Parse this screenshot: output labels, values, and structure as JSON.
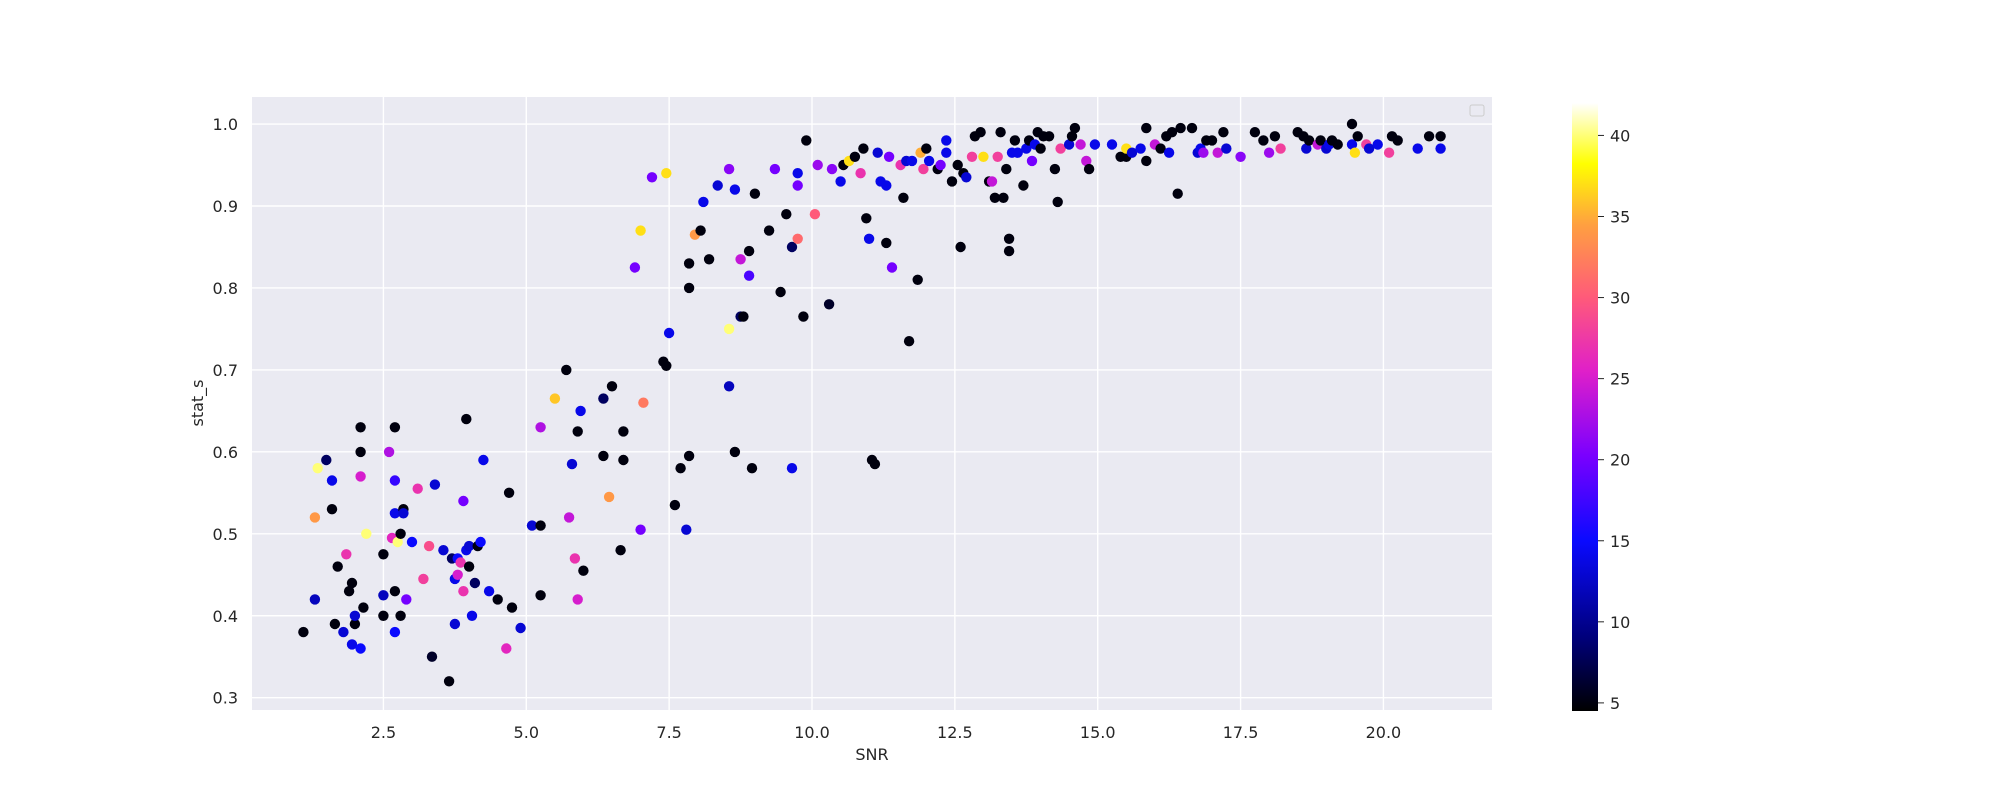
{
  "chart_data": {
    "type": "scatter",
    "title": "",
    "xlabel": "SNR",
    "ylabel": "stat_s",
    "xlim": [
      0.2,
      21.9
    ],
    "ylim": [
      0.285,
      1.033
    ],
    "xticks": [
      "2.5",
      "5.0",
      "7.5",
      "10.0",
      "12.5",
      "15.0",
      "17.5",
      "20.0"
    ],
    "yticks": [
      "0.3",
      "0.4",
      "0.5",
      "0.6",
      "0.7",
      "0.8",
      "0.9",
      "1.0"
    ],
    "grid": true,
    "legend": "top-right, empty",
    "colorbar": {
      "range": [
        4.5,
        42
      ],
      "ticks": [
        "5",
        "10",
        "15",
        "20",
        "25",
        "30",
        "35",
        "40"
      ],
      "colormap": "gnuplot2"
    },
    "colors": {
      "plot_background": "#eaeaf2",
      "grid": "#ffffff",
      "text": "#262626"
    },
    "points": [
      [
        1.1,
        0.38,
        5
      ],
      [
        1.3,
        0.42,
        12
      ],
      [
        1.3,
        0.52,
        34
      ],
      [
        1.35,
        0.58,
        40
      ],
      [
        1.5,
        0.59,
        8
      ],
      [
        1.6,
        0.53,
        5
      ],
      [
        1.6,
        0.565,
        14
      ],
      [
        1.65,
        0.39,
        5
      ],
      [
        1.7,
        0.46,
        5
      ],
      [
        1.8,
        0.38,
        13
      ],
      [
        1.85,
        0.475,
        27
      ],
      [
        1.9,
        0.43,
        5
      ],
      [
        1.95,
        0.365,
        14
      ],
      [
        1.95,
        0.44,
        5
      ],
      [
        2.0,
        0.39,
        5
      ],
      [
        2.0,
        0.4,
        13
      ],
      [
        2.1,
        0.36,
        15
      ],
      [
        2.1,
        0.57,
        25
      ],
      [
        2.1,
        0.6,
        5
      ],
      [
        2.1,
        0.63,
        5
      ],
      [
        2.15,
        0.41,
        5
      ],
      [
        2.2,
        0.5,
        40
      ],
      [
        2.5,
        0.425,
        12
      ],
      [
        2.5,
        0.475,
        5
      ],
      [
        2.5,
        0.4,
        5
      ],
      [
        2.6,
        0.6,
        23
      ],
      [
        2.65,
        0.495,
        26
      ],
      [
        2.7,
        0.38,
        15
      ],
      [
        2.7,
        0.43,
        5
      ],
      [
        2.7,
        0.525,
        14
      ],
      [
        2.7,
        0.565,
        17
      ],
      [
        2.7,
        0.63,
        5
      ],
      [
        2.75,
        0.49,
        40
      ],
      [
        2.8,
        0.4,
        5
      ],
      [
        2.8,
        0.5,
        5
      ],
      [
        2.85,
        0.53,
        5
      ],
      [
        2.85,
        0.525,
        13
      ],
      [
        2.9,
        0.42,
        20
      ],
      [
        3.0,
        0.49,
        15
      ],
      [
        3.1,
        0.555,
        27
      ],
      [
        3.2,
        0.445,
        28
      ],
      [
        3.3,
        0.485,
        29
      ],
      [
        3.35,
        0.35,
        6
      ],
      [
        3.4,
        0.56,
        13
      ],
      [
        3.55,
        0.48,
        13
      ],
      [
        3.65,
        0.32,
        5
      ],
      [
        3.7,
        0.47,
        8
      ],
      [
        3.75,
        0.39,
        13
      ],
      [
        3.75,
        0.445,
        14
      ],
      [
        3.8,
        0.47,
        15
      ],
      [
        3.8,
        0.45,
        25
      ],
      [
        3.85,
        0.465,
        27
      ],
      [
        3.9,
        0.43,
        27
      ],
      [
        3.9,
        0.54,
        20
      ],
      [
        3.95,
        0.64,
        5
      ],
      [
        3.95,
        0.48,
        14
      ],
      [
        4.0,
        0.485,
        13
      ],
      [
        4.0,
        0.46,
        5
      ],
      [
        4.05,
        0.4,
        14
      ],
      [
        4.1,
        0.44,
        8
      ],
      [
        4.15,
        0.485,
        5
      ],
      [
        4.2,
        0.49,
        15
      ],
      [
        4.25,
        0.59,
        14
      ],
      [
        4.35,
        0.43,
        14
      ],
      [
        4.5,
        0.42,
        5
      ],
      [
        4.65,
        0.36,
        26
      ],
      [
        4.7,
        0.55,
        5
      ],
      [
        4.75,
        0.41,
        5
      ],
      [
        4.9,
        0.385,
        13
      ],
      [
        5.1,
        0.51,
        13
      ],
      [
        5.25,
        0.425,
        5
      ],
      [
        5.25,
        0.51,
        5
      ],
      [
        5.25,
        0.63,
        23
      ],
      [
        5.5,
        0.665,
        36
      ],
      [
        5.7,
        0.7,
        5
      ],
      [
        5.75,
        0.52,
        24
      ],
      [
        5.8,
        0.585,
        13
      ],
      [
        5.85,
        0.47,
        27
      ],
      [
        5.9,
        0.625,
        5
      ],
      [
        5.9,
        0.42,
        25
      ],
      [
        5.95,
        0.65,
        14
      ],
      [
        6.0,
        0.455,
        5
      ],
      [
        6.35,
        0.595,
        5
      ],
      [
        6.35,
        0.665,
        8
      ],
      [
        6.45,
        0.545,
        34
      ],
      [
        6.5,
        0.68,
        5
      ],
      [
        6.65,
        0.48,
        5
      ],
      [
        6.7,
        0.59,
        5
      ],
      [
        6.7,
        0.625,
        5
      ],
      [
        6.9,
        0.825,
        20
      ],
      [
        7.0,
        0.505,
        20
      ],
      [
        7.0,
        0.87,
        37
      ],
      [
        7.05,
        0.66,
        32
      ],
      [
        7.2,
        0.935,
        20
      ],
      [
        7.4,
        0.71,
        5
      ],
      [
        7.45,
        0.705,
        5
      ],
      [
        7.45,
        0.94,
        37
      ],
      [
        7.5,
        0.745,
        14
      ],
      [
        7.6,
        0.535,
        5
      ],
      [
        7.7,
        0.58,
        5
      ],
      [
        7.8,
        0.505,
        13
      ],
      [
        7.85,
        0.83,
        5
      ],
      [
        7.85,
        0.8,
        5
      ],
      [
        7.85,
        0.595,
        5
      ],
      [
        7.95,
        0.865,
        34
      ],
      [
        8.05,
        0.87,
        5
      ],
      [
        8.1,
        0.905,
        14
      ],
      [
        8.2,
        0.835,
        5
      ],
      [
        8.35,
        0.925,
        13
      ],
      [
        8.55,
        0.75,
        40
      ],
      [
        8.55,
        0.68,
        12
      ],
      [
        8.55,
        0.945,
        21
      ],
      [
        8.65,
        0.92,
        14
      ],
      [
        8.65,
        0.6,
        5
      ],
      [
        8.75,
        0.835,
        24
      ],
      [
        8.75,
        0.765,
        8
      ],
      [
        8.8,
        0.765,
        5
      ],
      [
        8.9,
        0.845,
        5
      ],
      [
        8.9,
        0.815,
        18
      ],
      [
        8.95,
        0.58,
        5
      ],
      [
        9.0,
        0.915,
        5
      ],
      [
        9.25,
        0.87,
        5
      ],
      [
        9.35,
        0.945,
        20
      ],
      [
        9.45,
        0.795,
        5
      ],
      [
        9.55,
        0.89,
        5
      ],
      [
        9.65,
        0.58,
        14
      ],
      [
        9.65,
        0.85,
        8
      ],
      [
        9.75,
        0.86,
        31
      ],
      [
        9.75,
        0.94,
        14
      ],
      [
        9.75,
        0.925,
        20
      ],
      [
        9.85,
        0.765,
        5
      ],
      [
        9.9,
        0.98,
        5
      ],
      [
        10.05,
        0.89,
        30
      ],
      [
        10.1,
        0.95,
        22
      ],
      [
        10.3,
        0.78,
        6
      ],
      [
        10.35,
        0.945,
        21
      ],
      [
        10.5,
        0.93,
        14
      ],
      [
        10.55,
        0.95,
        5
      ],
      [
        10.65,
        0.955,
        37
      ],
      [
        10.75,
        0.96,
        5
      ],
      [
        10.85,
        0.94,
        27
      ],
      [
        10.9,
        0.97,
        5
      ],
      [
        10.95,
        0.885,
        5
      ],
      [
        11.0,
        0.86,
        14
      ],
      [
        11.05,
        0.59,
        5
      ],
      [
        11.1,
        0.585,
        5
      ],
      [
        11.15,
        0.965,
        13
      ],
      [
        11.2,
        0.93,
        14
      ],
      [
        11.3,
        0.925,
        14
      ],
      [
        11.3,
        0.855,
        5
      ],
      [
        11.35,
        0.96,
        20
      ],
      [
        11.4,
        0.825,
        20
      ],
      [
        11.55,
        0.95,
        27
      ],
      [
        11.6,
        0.91,
        5
      ],
      [
        11.65,
        0.955,
        13
      ],
      [
        11.7,
        0.735,
        5
      ],
      [
        11.75,
        0.955,
        14
      ],
      [
        11.85,
        0.81,
        5
      ],
      [
        11.9,
        0.965,
        35
      ],
      [
        11.95,
        0.945,
        28
      ],
      [
        12.0,
        0.97,
        5
      ],
      [
        12.05,
        0.955,
        14
      ],
      [
        12.2,
        0.945,
        5
      ],
      [
        12.25,
        0.95,
        20
      ],
      [
        12.35,
        0.965,
        14
      ],
      [
        12.35,
        0.98,
        14
      ],
      [
        12.45,
        0.93,
        5
      ],
      [
        12.55,
        0.95,
        5
      ],
      [
        12.6,
        0.85,
        5
      ],
      [
        12.65,
        0.94,
        5
      ],
      [
        12.7,
        0.935,
        13
      ],
      [
        12.8,
        0.96,
        28
      ],
      [
        12.85,
        0.985,
        5
      ],
      [
        12.95,
        0.99,
        5
      ],
      [
        13.0,
        0.96,
        37
      ],
      [
        13.1,
        0.93,
        5
      ],
      [
        13.15,
        0.93,
        24
      ],
      [
        13.2,
        0.91,
        5
      ],
      [
        13.25,
        0.96,
        28
      ],
      [
        13.3,
        0.99,
        5
      ],
      [
        13.35,
        0.91,
        5
      ],
      [
        13.4,
        0.945,
        5
      ],
      [
        13.45,
        0.845,
        5
      ],
      [
        13.45,
        0.86,
        5
      ],
      [
        13.5,
        0.965,
        14
      ],
      [
        13.55,
        0.98,
        5
      ],
      [
        13.6,
        0.965,
        14
      ],
      [
        13.7,
        0.925,
        5
      ],
      [
        13.75,
        0.97,
        14
      ],
      [
        13.8,
        0.98,
        5
      ],
      [
        13.85,
        0.955,
        20
      ],
      [
        13.9,
        0.975,
        14
      ],
      [
        13.95,
        0.99,
        5
      ],
      [
        14.0,
        0.97,
        5
      ],
      [
        14.05,
        0.985,
        5
      ],
      [
        14.15,
        0.985,
        5
      ],
      [
        14.25,
        0.945,
        5
      ],
      [
        14.3,
        0.905,
        5
      ],
      [
        14.35,
        0.97,
        28
      ],
      [
        14.5,
        0.975,
        13
      ],
      [
        14.55,
        0.985,
        5
      ],
      [
        14.6,
        0.995,
        5
      ],
      [
        14.7,
        0.975,
        24
      ],
      [
        14.8,
        0.955,
        24
      ],
      [
        14.85,
        0.945,
        5
      ],
      [
        14.95,
        0.975,
        14
      ],
      [
        15.25,
        0.975,
        14
      ],
      [
        15.4,
        0.96,
        5
      ],
      [
        15.5,
        0.96,
        5
      ],
      [
        15.5,
        0.97,
        37
      ],
      [
        15.6,
        0.965,
        13
      ],
      [
        15.75,
        0.97,
        14
      ],
      [
        15.85,
        0.955,
        5
      ],
      [
        15.85,
        0.995,
        5
      ],
      [
        16.0,
        0.975,
        24
      ],
      [
        16.1,
        0.97,
        5
      ],
      [
        16.2,
        0.985,
        5
      ],
      [
        16.25,
        0.965,
        14
      ],
      [
        16.3,
        0.99,
        5
      ],
      [
        16.4,
        0.915,
        5
      ],
      [
        16.45,
        0.995,
        5
      ],
      [
        16.65,
        0.995,
        5
      ],
      [
        16.75,
        0.965,
        13
      ],
      [
        16.8,
        0.97,
        14
      ],
      [
        16.85,
        0.965,
        22
      ],
      [
        16.9,
        0.98,
        5
      ],
      [
        17.0,
        0.98,
        5
      ],
      [
        17.1,
        0.965,
        24
      ],
      [
        17.2,
        0.99,
        5
      ],
      [
        17.25,
        0.97,
        13
      ],
      [
        17.5,
        0.96,
        21
      ],
      [
        17.75,
        0.99,
        5
      ],
      [
        17.9,
        0.98,
        5
      ],
      [
        18.0,
        0.965,
        22
      ],
      [
        18.1,
        0.985,
        5
      ],
      [
        18.2,
        0.97,
        28
      ],
      [
        18.5,
        0.99,
        5
      ],
      [
        18.6,
        0.985,
        5
      ],
      [
        18.65,
        0.97,
        13
      ],
      [
        18.7,
        0.98,
        5
      ],
      [
        18.85,
        0.975,
        24
      ],
      [
        18.9,
        0.98,
        5
      ],
      [
        19.0,
        0.97,
        13
      ],
      [
        19.05,
        0.975,
        14
      ],
      [
        19.1,
        0.98,
        5
      ],
      [
        19.2,
        0.975,
        5
      ],
      [
        19.45,
        1.0,
        5
      ],
      [
        19.45,
        0.975,
        14
      ],
      [
        19.5,
        0.965,
        37
      ],
      [
        19.55,
        0.985,
        5
      ],
      [
        19.7,
        0.975,
        28
      ],
      [
        19.75,
        0.97,
        13
      ],
      [
        19.9,
        0.975,
        14
      ],
      [
        20.1,
        0.965,
        28
      ],
      [
        20.15,
        0.985,
        5
      ],
      [
        20.25,
        0.98,
        5
      ],
      [
        20.6,
        0.97,
        14
      ],
      [
        20.8,
        0.985,
        5
      ],
      [
        21.0,
        0.985,
        5
      ],
      [
        21.0,
        0.97,
        14
      ]
    ]
  }
}
